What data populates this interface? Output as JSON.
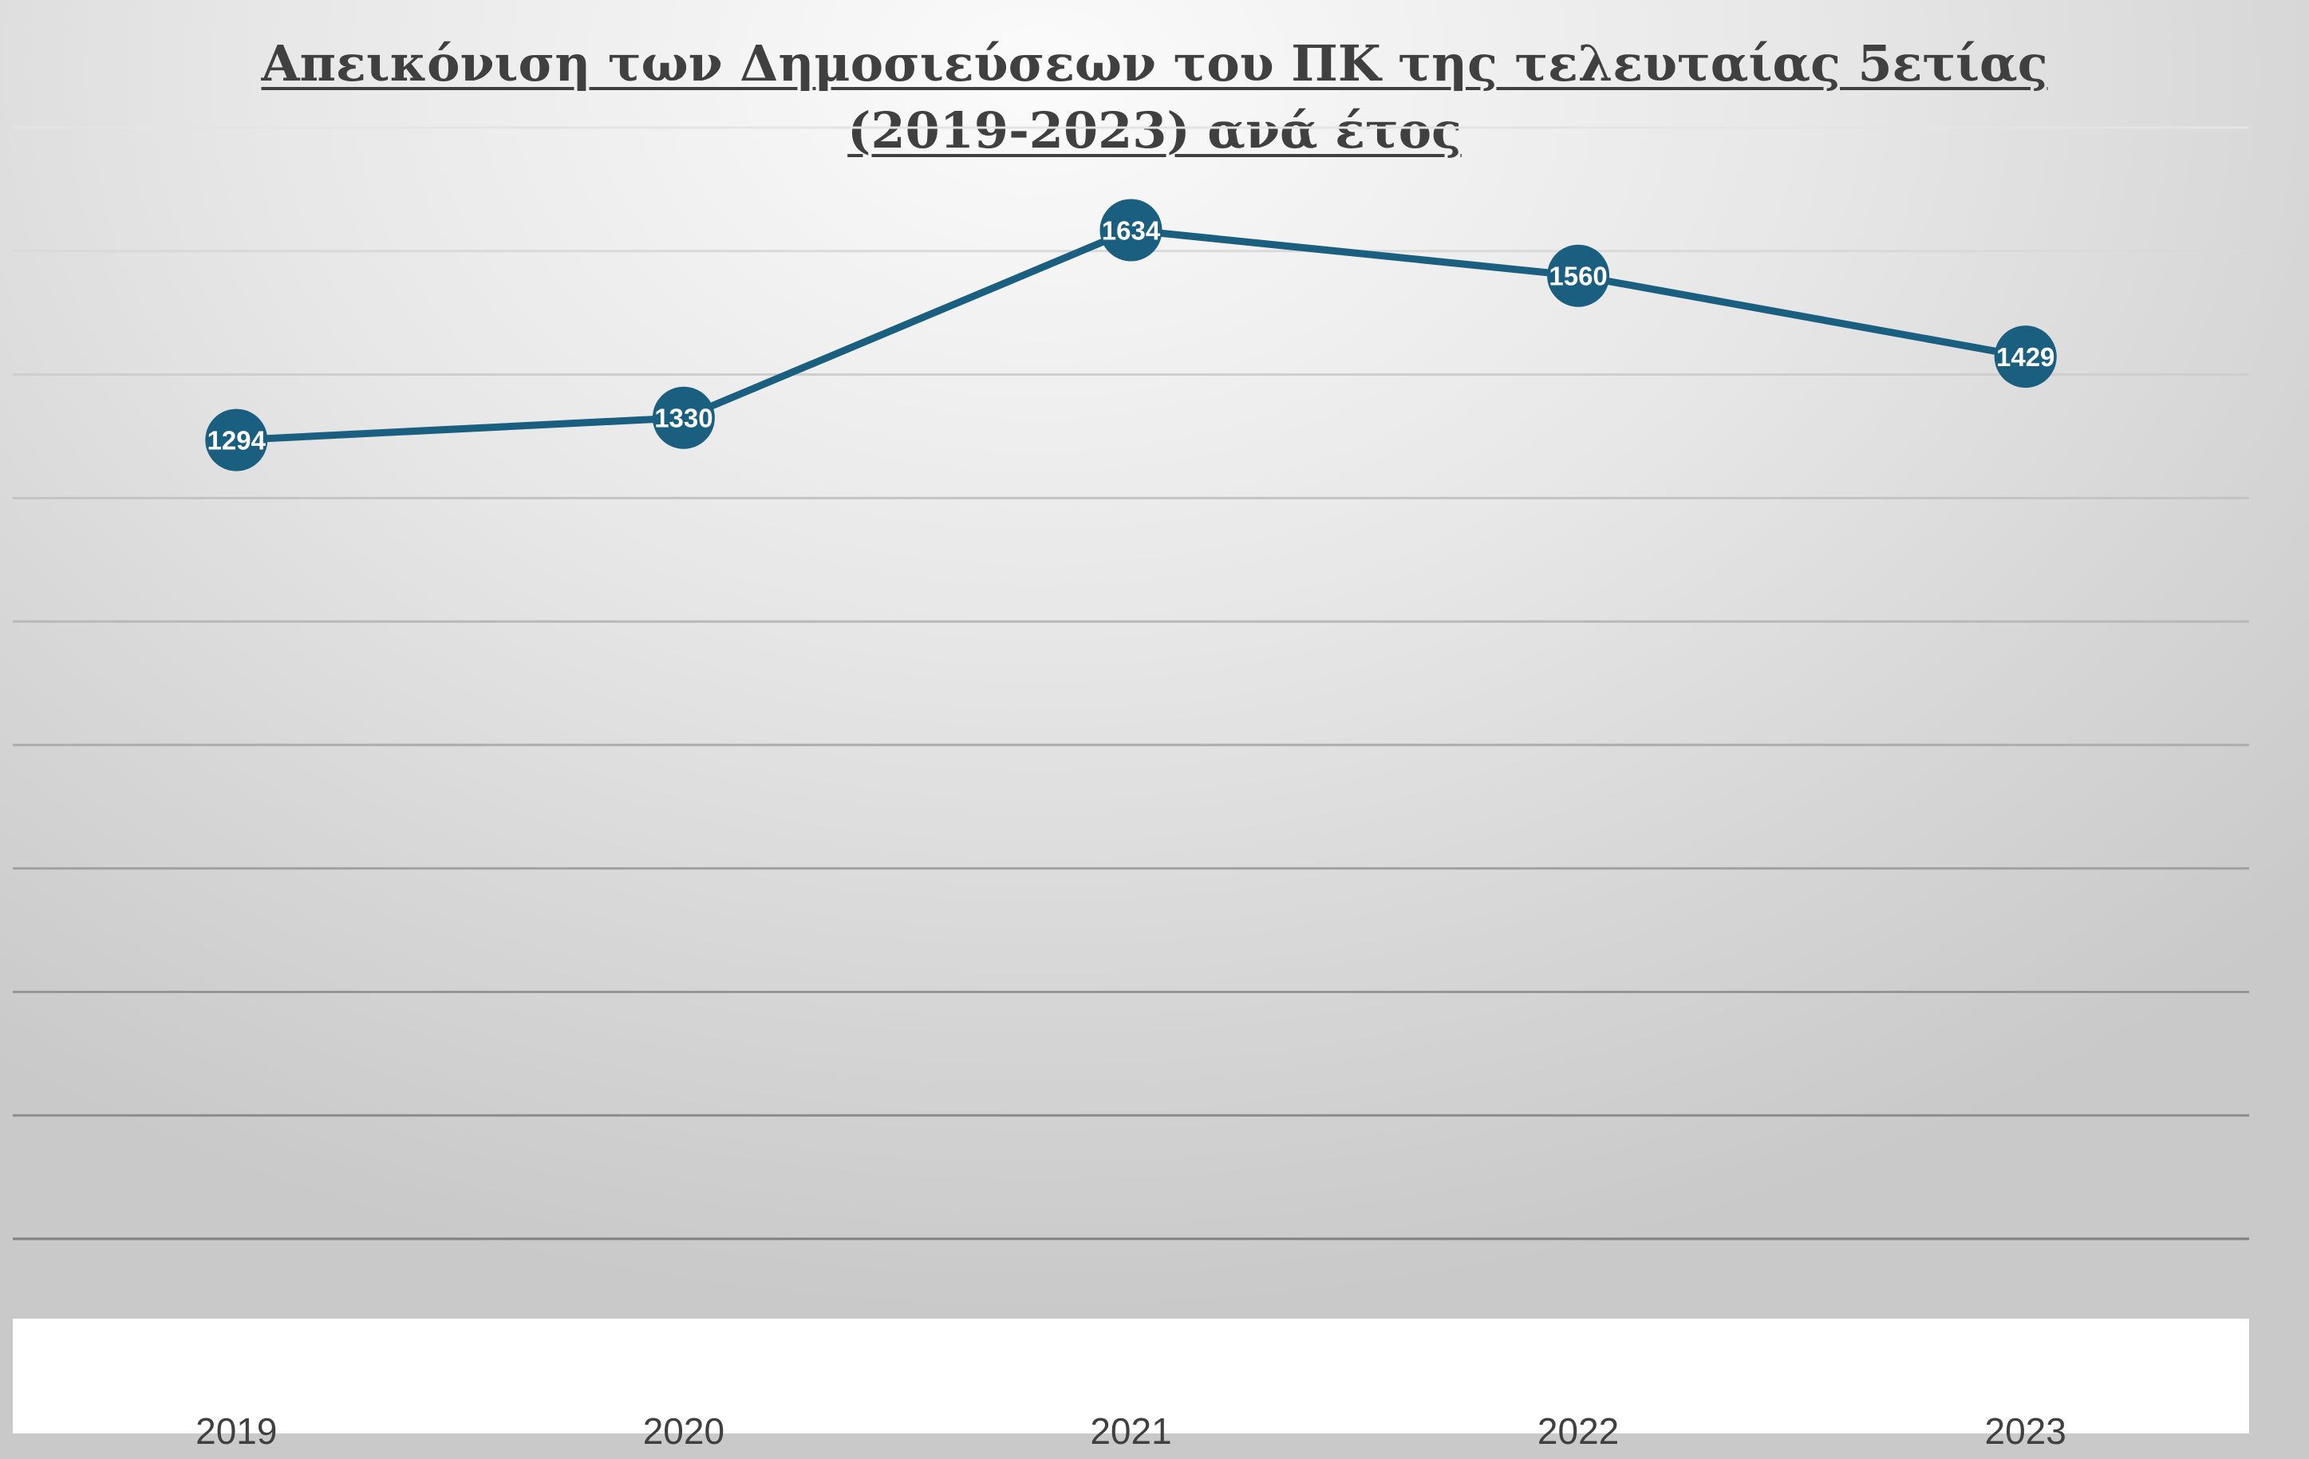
{
  "chart_data": {
    "type": "line",
    "title_line1": "Απεικόνιση των Δημοσιεύσεων του ΠΚ της τελευταίας 5ετίας",
    "title_line2": "(2019-2023) ανά έτος",
    "categories": [
      "2019",
      "2020",
      "2021",
      "2022",
      "2023"
    ],
    "series": [
      {
        "values": [
          1294,
          1330,
          1634,
          1560,
          1429
        ]
      }
    ],
    "data_labels": true,
    "ylim": [
      0,
      1800
    ],
    "grid": true,
    "legend": "none",
    "colors": {
      "line": "#1a5e80",
      "marker": "#1a5e80",
      "label_text": "#ffffff"
    }
  }
}
